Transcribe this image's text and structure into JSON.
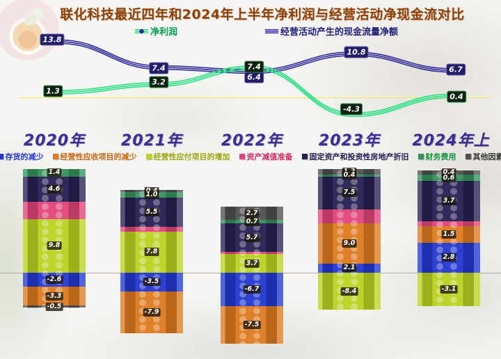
{
  "title": "联化科技最近四年和2024年上半年净利润与经营活动净现金流对比",
  "colors": {
    "title": "#8d4108",
    "background": "#f6f5f3",
    "net_profit_line": "#2bdf85",
    "cash_flow_line": "#332c99",
    "net_profit_legend_text": "#009a4d",
    "cash_flow_legend_text": "#1d1d74",
    "net_profit_marker_dot": "#2a2a8c",
    "cash_flow_marker_dot": "#7a6ed2",
    "zero_line_top": "#eeea58",
    "zero_line_bottom": "#b2aea7",
    "year_label": "#3a2f92"
  },
  "line_legend": [
    {
      "label": "净利润"
    },
    {
      "label": "经营活动产生的现金流量净额"
    }
  ],
  "chart_data": [
    {
      "type": "line",
      "title": "净利润与经营活动净现金流对比（亿元）",
      "categories": [
        "2020年",
        "2021年",
        "2022年",
        "2023年",
        "2024年上"
      ],
      "series": [
        {
          "name": "净利润",
          "color": "#2bdf85",
          "values": [
            1.3,
            3.2,
            7.4,
            -4.3,
            0.4
          ]
        },
        {
          "name": "经营活动产生的现金流量净额",
          "color": "#332c99",
          "values": [
            13.8,
            7.4,
            6.4,
            10.8,
            6.7
          ]
        }
      ],
      "zero_line": true,
      "legend_position": "top"
    },
    {
      "type": "bar",
      "subtype": "stacked-diverging",
      "categories": [
        "2020年",
        "2021年",
        "2022年",
        "2023年",
        "2024年上"
      ],
      "series": [
        {
          "name": "存货的减少",
          "color": "#2337cf",
          "text_color": "#2337cf",
          "values": [
            -2.6,
            -3.5,
            -6.7,
            2.1,
            2.8
          ]
        },
        {
          "name": "经营性应收项目的减少",
          "color": "#dd7a1f",
          "text_color": "#c66410",
          "values": [
            -3.3,
            -7.9,
            -7.5,
            9.0,
            1.5
          ]
        },
        {
          "name": "经营性应付项目的增加",
          "color": "#bcd122",
          "text_color": "#9aa50f",
          "values": [
            9.8,
            7.8,
            3.7,
            -8.4,
            -3.1
          ]
        },
        {
          "name": "资产减值准备",
          "color": "#e0447a",
          "text_color": "#cc2d60",
          "values": [
            3.1,
            0.9,
            0.4,
            3.2,
            0.5
          ],
          "labels_shown": false
        },
        {
          "name": "固定资产和投资性房地产折旧",
          "color": "#262052",
          "text_color": "#1c1a4e",
          "values": [
            4.6,
            5.5,
            5.7,
            7.5,
            3.7
          ]
        },
        {
          "name": "财务费用",
          "color": "#35915c",
          "text_color": "#12963f",
          "values": [
            1.4,
            1.0,
            0.7,
            0.4,
            0.6
          ]
        },
        {
          "name": "其他因素",
          "color": "#4f4f4f",
          "text_color": "#333333",
          "values": [
            -0.5,
            0.4,
            2.7,
            1.2,
            0.4
          ]
        }
      ],
      "legend_position": "top",
      "grid": false
    }
  ]
}
